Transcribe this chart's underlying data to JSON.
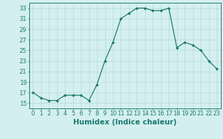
{
  "x": [
    0,
    1,
    2,
    3,
    4,
    5,
    6,
    7,
    8,
    9,
    10,
    11,
    12,
    13,
    14,
    15,
    16,
    17,
    18,
    19,
    20,
    21,
    22,
    23
  ],
  "y": [
    17,
    16,
    15.5,
    15.5,
    16.5,
    16.5,
    16.5,
    15.5,
    18.5,
    23,
    26.5,
    31,
    32,
    33,
    33,
    32.5,
    32.5,
    33,
    25.5,
    26.5,
    26,
    25,
    23,
    21.5
  ],
  "line_color": "#1a7a6e",
  "marker_color": "#1a7a6e",
  "bg_color": "#d4efef",
  "grid_color": "#b8d8d8",
  "xlabel": "Humidex (Indice chaleur)",
  "xlim": [
    -0.5,
    23.5
  ],
  "ylim": [
    14,
    34
  ],
  "yticks": [
    15,
    17,
    19,
    21,
    23,
    25,
    27,
    29,
    31,
    33
  ],
  "xticks": [
    0,
    1,
    2,
    3,
    4,
    5,
    6,
    7,
    8,
    9,
    10,
    11,
    12,
    13,
    14,
    15,
    16,
    17,
    18,
    19,
    20,
    21,
    22,
    23
  ],
  "xtick_labels": [
    "0",
    "1",
    "2",
    "3",
    "4",
    "5",
    "6",
    "7",
    "8",
    "9",
    "10",
    "11",
    "12",
    "13",
    "14",
    "15",
    "16",
    "17",
    "18",
    "19",
    "20",
    "21",
    "22",
    "23"
  ],
  "label_fontsize": 7.5,
  "tick_fontsize": 6.0
}
